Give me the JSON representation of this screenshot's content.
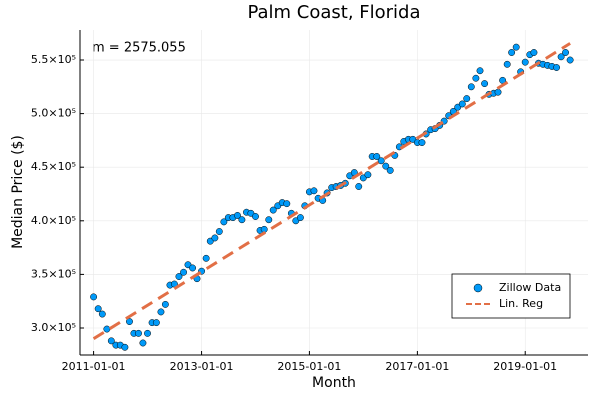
{
  "chart_data": {
    "type": "scatter",
    "title": "Palm Coast, Florida",
    "xlabel": "Month",
    "ylabel": "Median Price ($)",
    "annotation": "m = 2575.055",
    "xlim": [
      "2010-10-01",
      "2020-03-01"
    ],
    "xticks": [
      "2011-01-01",
      "2013-01-01",
      "2015-01-01",
      "2017-01-01",
      "2019-01-01"
    ],
    "ylim": [
      274800,
      578000
    ],
    "yticks": [
      {
        "value": 300000,
        "label": "3.0×10⁵"
      },
      {
        "value": 350000,
        "label": "3.5×10⁵"
      },
      {
        "value": 400000,
        "label": "4.0×10⁵"
      },
      {
        "value": 450000,
        "label": "4.5×10⁵"
      },
      {
        "value": 500000,
        "label": "5.0×10⁵"
      },
      {
        "value": 550000,
        "label": "5.5×10⁵"
      }
    ],
    "grid": true,
    "legend": "lower right",
    "series": [
      {
        "name": "Zillow Data",
        "color": "#009af9",
        "kind": "scatter",
        "x": [
          "2011-01-01",
          "2011-02-01",
          "2011-03-01",
          "2011-04-01",
          "2011-05-01",
          "2011-06-01",
          "2011-07-01",
          "2011-08-01",
          "2011-09-01",
          "2011-10-01",
          "2011-11-01",
          "2011-12-01",
          "2012-01-01",
          "2012-02-01",
          "2012-03-01",
          "2012-04-01",
          "2012-05-01",
          "2012-06-01",
          "2012-07-01",
          "2012-08-01",
          "2012-09-01",
          "2012-10-01",
          "2012-11-01",
          "2012-12-01",
          "2013-01-01",
          "2013-02-01",
          "2013-03-01",
          "2013-04-01",
          "2013-05-01",
          "2013-06-01",
          "2013-07-01",
          "2013-08-01",
          "2013-09-01",
          "2013-10-01",
          "2013-11-01",
          "2013-12-01",
          "2014-01-01",
          "2014-02-01",
          "2014-03-01",
          "2014-04-01",
          "2014-05-01",
          "2014-06-01",
          "2014-07-01",
          "2014-08-01",
          "2014-09-01",
          "2014-10-01",
          "2014-11-01",
          "2014-12-01",
          "2015-01-01",
          "2015-02-01",
          "2015-03-01",
          "2015-04-01",
          "2015-05-01",
          "2015-06-01",
          "2015-07-01",
          "2015-08-01",
          "2015-09-01",
          "2015-10-01",
          "2015-11-01",
          "2015-12-01",
          "2016-01-01",
          "2016-02-01",
          "2016-03-01",
          "2016-04-01",
          "2016-05-01",
          "2016-06-01",
          "2016-07-01",
          "2016-08-01",
          "2016-09-01",
          "2016-10-01",
          "2016-11-01",
          "2016-12-01",
          "2017-01-01",
          "2017-02-01",
          "2017-03-01",
          "2017-04-01",
          "2017-05-01",
          "2017-06-01",
          "2017-07-01",
          "2017-08-01",
          "2017-09-01",
          "2017-10-01",
          "2017-11-01",
          "2017-12-01",
          "2018-01-01",
          "2018-02-01",
          "2018-03-01",
          "2018-04-01",
          "2018-05-01",
          "2018-06-01",
          "2018-07-01",
          "2018-08-01",
          "2018-09-01",
          "2018-10-01",
          "2018-11-01",
          "2018-12-01",
          "2019-01-01",
          "2019-02-01",
          "2019-03-01",
          "2019-04-01",
          "2019-05-01",
          "2019-06-01",
          "2019-07-01",
          "2019-08-01",
          "2019-09-01",
          "2019-10-01",
          "2019-11-01"
        ],
        "values": [
          329000,
          318000,
          313000,
          299000,
          288000,
          284000,
          284000,
          282000,
          306000,
          295000,
          295000,
          286000,
          295000,
          305000,
          305000,
          315000,
          322000,
          340000,
          341000,
          348000,
          352000,
          359000,
          356000,
          346000,
          353000,
          365000,
          381000,
          384000,
          390000,
          399000,
          403000,
          403000,
          405000,
          401000,
          408000,
          407000,
          404000,
          391000,
          392000,
          401000,
          410000,
          414000,
          417000,
          416000,
          407000,
          400000,
          403000,
          414000,
          427000,
          428000,
          421000,
          419000,
          426000,
          431000,
          432000,
          433000,
          435000,
          442000,
          445000,
          432000,
          440000,
          443000,
          460000,
          460000,
          456000,
          451000,
          447000,
          461000,
          469000,
          474000,
          476000,
          476000,
          473000,
          473000,
          481000,
          485000,
          486000,
          489000,
          493000,
          498000,
          502000,
          506000,
          509000,
          514000,
          525000,
          533000,
          540000,
          528000,
          518000,
          519000,
          520000,
          531000,
          546000,
          557000,
          562000,
          539000,
          548000,
          555000,
          557000,
          547000,
          546000,
          545000,
          544000,
          543000,
          553000,
          557000,
          550000
        ]
      },
      {
        "name": "Lin. Reg",
        "color": "#e26f46",
        "kind": "line",
        "x": [
          "2011-01-01",
          "2019-11-01"
        ],
        "values": [
          290000,
          565500
        ]
      }
    ]
  }
}
